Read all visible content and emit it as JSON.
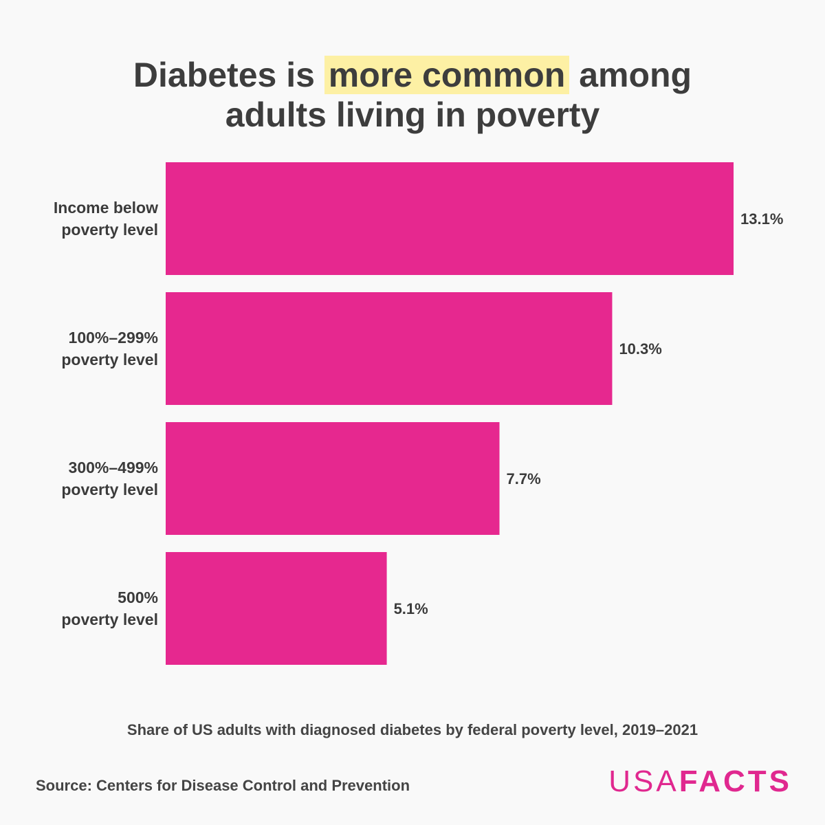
{
  "title": {
    "before": "Diabetes is ",
    "highlight": "more common",
    "after": " among",
    "line2": "adults living in poverty"
  },
  "chart_data": {
    "type": "bar",
    "orientation": "horizontal",
    "categories": [
      [
        "Income below",
        "poverty level"
      ],
      [
        "100%–299%",
        "poverty level"
      ],
      [
        "300%–499%",
        "poverty level"
      ],
      [
        "500%",
        "poverty level"
      ]
    ],
    "values": [
      13.1,
      10.3,
      7.7,
      5.1
    ],
    "value_labels": [
      "13.1%",
      "10.3%",
      "7.7%",
      "5.1%"
    ],
    "unit": "%",
    "bar_color": "#e6288f",
    "xlim": [
      0,
      13.1
    ],
    "grid": false
  },
  "subtitle": "Share of US adults with diagnosed diabetes by federal poverty level, 2019–2021",
  "source": "Source: Centers for Disease Control and Prevention",
  "logo": {
    "usa": "USA",
    "facts": "FACTS",
    "color": "#e0288f"
  }
}
